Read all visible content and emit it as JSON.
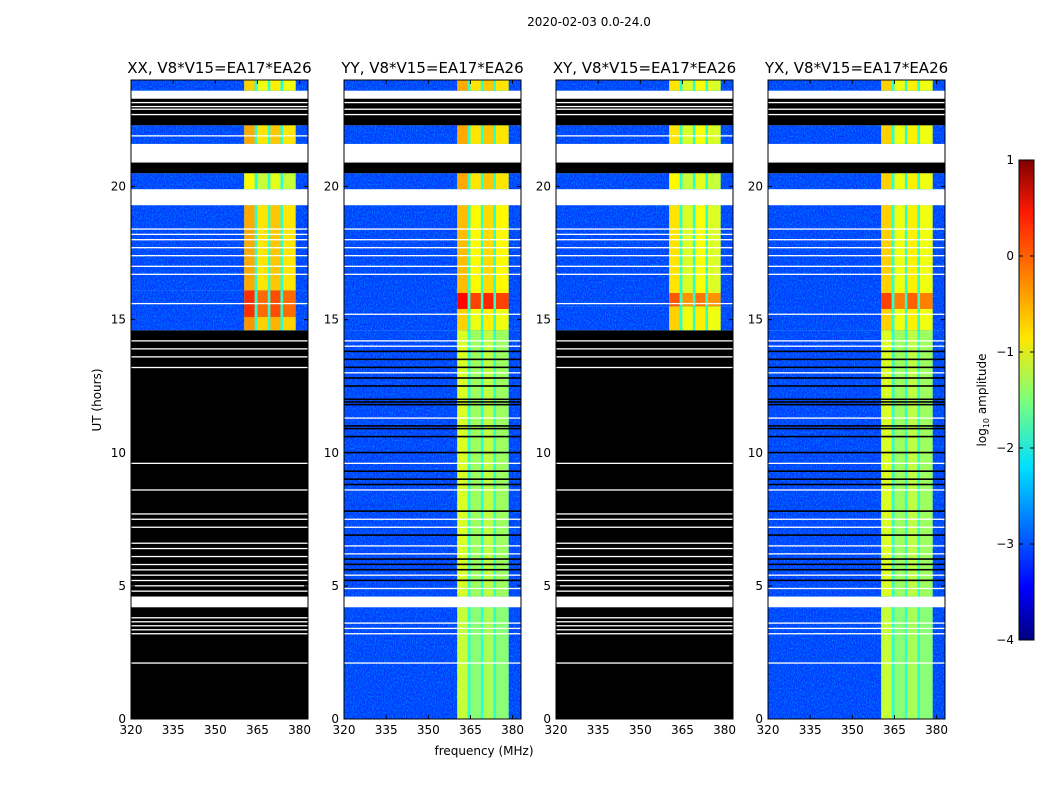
{
  "chart_data": {
    "type": "heatmap",
    "suptitle": "2020-02-03 0.0-24.0",
    "xlabel": "frequency (MHz)",
    "ylabel": "UT (hours)",
    "xlim": [
      320,
      383
    ],
    "ylim": [
      0,
      24
    ],
    "xticks": [
      "320",
      "335",
      "350",
      "365",
      "380"
    ],
    "xtick_values": [
      320,
      335,
      350,
      365,
      380
    ],
    "yticks": [
      "0",
      "5",
      "10",
      "15",
      "20"
    ],
    "ytick_values": [
      0,
      5,
      10,
      15,
      20
    ],
    "colorbar": {
      "label_main": "log",
      "label_sub": "10",
      "label_rest": " amplitude",
      "range": [
        -4,
        1
      ],
      "ticks": [
        "1",
        "0",
        "−1",
        "−2",
        "−3",
        "−4"
      ],
      "tick_values": [
        1,
        0,
        -1,
        -2,
        -3,
        -4
      ],
      "colormap": "jet"
    },
    "background_amplitude": -3.1,
    "gap_amplitude": -1.9,
    "bands_mhz": [
      [
        360.3,
        364
      ],
      [
        365,
        368.7
      ],
      [
        369.6,
        373.2
      ],
      [
        374.1,
        378.6
      ]
    ],
    "panels": [
      {
        "title": "XX, V8*V15=EA17*EA26",
        "segments": [
          [
            0,
            4.2,
            "zero"
          ],
          [
            4.2,
            4.6,
            "flagged"
          ],
          [
            4.6,
            14.6,
            "zero"
          ],
          [
            14.6,
            15.1,
            "data",
            -0.5
          ],
          [
            15.1,
            16.1,
            "data",
            0.0
          ],
          [
            16.1,
            19.3,
            "data",
            -0.6
          ],
          [
            19.3,
            19.9,
            "flagged"
          ],
          [
            19.9,
            20.5,
            "data",
            -1.0
          ],
          [
            20.5,
            20.9,
            "zero"
          ],
          [
            20.9,
            21.6,
            "flagged"
          ],
          [
            21.6,
            22.3,
            "data",
            -0.6
          ],
          [
            22.3,
            23.3,
            "zero"
          ],
          [
            23.3,
            23.6,
            "flagged"
          ],
          [
            23.6,
            24,
            "data",
            -0.8
          ]
        ],
        "flag_lines": [
          2.1,
          3.2,
          3.35,
          3.5,
          3.65,
          3.8,
          4.8,
          5.0,
          5.2,
          5.4,
          5.6,
          5.8,
          6.1,
          6.4,
          6.6,
          7.2,
          7.5,
          7.7,
          8.6,
          9.6,
          13.2,
          13.6,
          13.9,
          14.2,
          15.6,
          16.7,
          17.0,
          17.4,
          17.7,
          18.0,
          18.2,
          18.4,
          21.9,
          22.7,
          22.9,
          23.0,
          23.15
        ]
      },
      {
        "title": "YY, V8*V15=EA17*EA26",
        "segments": [
          [
            0,
            4.2,
            "data",
            -1.3
          ],
          [
            4.2,
            4.6,
            "flagged"
          ],
          [
            4.6,
            14.6,
            "data",
            -1.2
          ],
          [
            14.6,
            15.4,
            "data",
            -0.8
          ],
          [
            15.4,
            16.0,
            "data",
            0.2
          ],
          [
            16.0,
            19.3,
            "data",
            -0.7
          ],
          [
            19.3,
            19.9,
            "flagged"
          ],
          [
            19.9,
            20.5,
            "data",
            -0.6
          ],
          [
            20.5,
            20.9,
            "zero"
          ],
          [
            20.9,
            21.6,
            "flagged"
          ],
          [
            21.6,
            22.3,
            "data",
            -0.6
          ],
          [
            22.3,
            23.3,
            "zero"
          ],
          [
            23.3,
            23.6,
            "flagged"
          ],
          [
            23.6,
            24,
            "data",
            -0.6
          ]
        ],
        "zero_lines": [
          5.2,
          5.6,
          5.8,
          6.0,
          6.9,
          7.8,
          8.8,
          9.0,
          9.3,
          10.0,
          10.6,
          10.9,
          11.0,
          11.8,
          11.9,
          12.0,
          12.5,
          12.8,
          13.2,
          13.5,
          13.8
        ],
        "flag_lines": [
          2.1,
          3.2,
          3.4,
          3.6,
          4.9,
          5.4,
          6.2,
          6.5,
          7.2,
          7.5,
          8.6,
          9.6,
          11.3,
          13.0,
          14.0,
          14.2,
          15.2,
          16.7,
          17.0,
          17.4,
          17.7,
          18.0,
          18.4,
          22.7,
          22.9,
          23.15
        ]
      },
      {
        "title": "XY, V8*V15=EA17*EA26",
        "segments": [
          [
            0,
            4.2,
            "zero"
          ],
          [
            4.2,
            4.6,
            "flagged"
          ],
          [
            4.6,
            14.6,
            "zero"
          ],
          [
            14.6,
            15.5,
            "data",
            -0.8
          ],
          [
            15.5,
            16.0,
            "data",
            -0.2
          ],
          [
            16.0,
            19.3,
            "data",
            -0.9
          ],
          [
            19.3,
            19.9,
            "flagged"
          ],
          [
            19.9,
            20.5,
            "data",
            -1.0
          ],
          [
            20.5,
            20.9,
            "zero"
          ],
          [
            20.9,
            21.6,
            "flagged"
          ],
          [
            21.6,
            22.3,
            "data",
            -0.9
          ],
          [
            22.3,
            23.3,
            "zero"
          ],
          [
            23.3,
            23.6,
            "flagged"
          ],
          [
            23.6,
            24,
            "data",
            -0.9
          ]
        ],
        "flag_lines": [
          2.1,
          3.2,
          3.35,
          3.5,
          3.65,
          3.8,
          4.8,
          5.0,
          5.2,
          5.4,
          5.6,
          5.8,
          6.1,
          6.4,
          6.6,
          7.2,
          7.5,
          7.7,
          8.6,
          9.6,
          13.2,
          13.6,
          13.9,
          14.2,
          15.6,
          16.7,
          17.0,
          17.4,
          17.7,
          18.0,
          18.2,
          18.4,
          21.9,
          22.7,
          22.9,
          23.0,
          23.15
        ]
      },
      {
        "title": "YX, V8*V15=EA17*EA26",
        "segments": [
          [
            0,
            4.2,
            "data",
            -1.3
          ],
          [
            4.2,
            4.6,
            "flagged"
          ],
          [
            4.6,
            14.6,
            "data",
            -1.2
          ],
          [
            14.6,
            15.4,
            "data",
            -0.8
          ],
          [
            15.4,
            16.0,
            "data",
            -0.1
          ],
          [
            16.0,
            19.3,
            "data",
            -0.8
          ],
          [
            19.3,
            19.9,
            "flagged"
          ],
          [
            19.9,
            20.5,
            "data",
            -0.8
          ],
          [
            20.5,
            20.9,
            "zero"
          ],
          [
            20.9,
            21.6,
            "flagged"
          ],
          [
            21.6,
            22.3,
            "data",
            -0.8
          ],
          [
            22.3,
            23.3,
            "zero"
          ],
          [
            23.3,
            23.6,
            "flagged"
          ],
          [
            23.6,
            24,
            "data",
            -0.8
          ]
        ],
        "zero_lines": [
          5.2,
          5.6,
          5.8,
          6.0,
          6.9,
          7.8,
          8.8,
          9.0,
          9.3,
          10.0,
          10.6,
          10.9,
          11.0,
          11.8,
          11.9,
          12.0,
          12.5,
          12.8,
          13.2,
          13.5,
          13.8
        ],
        "flag_lines": [
          2.1,
          3.2,
          3.4,
          3.6,
          4.9,
          5.4,
          6.2,
          6.5,
          7.2,
          7.5,
          8.6,
          9.6,
          11.3,
          13.0,
          14.0,
          14.2,
          15.2,
          16.7,
          17.0,
          17.4,
          17.7,
          18.0,
          18.4,
          22.7,
          22.9,
          23.15
        ]
      }
    ]
  }
}
